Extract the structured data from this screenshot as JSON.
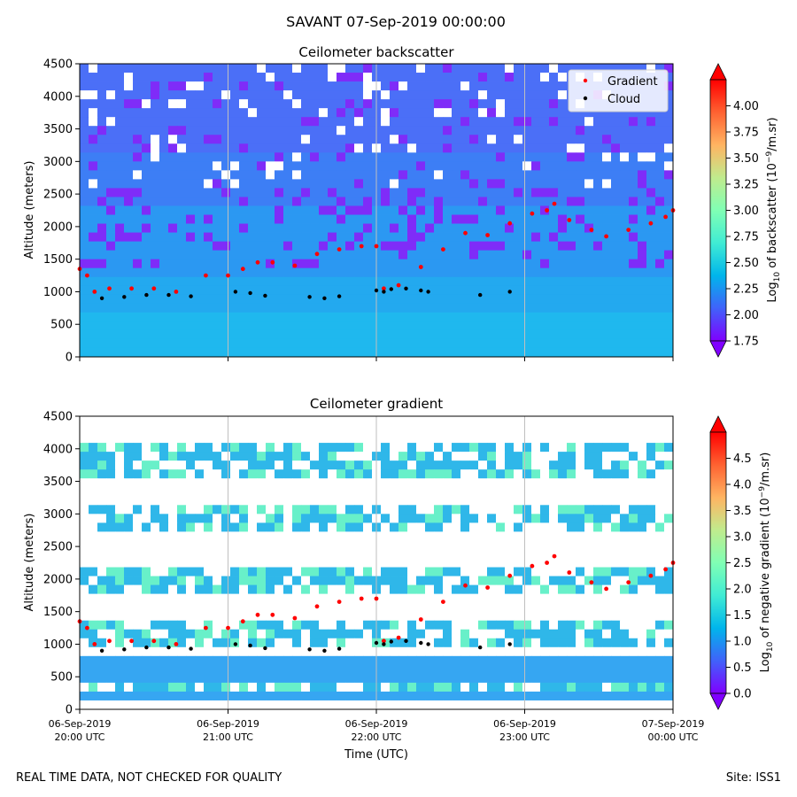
{
  "figure": {
    "suptitle": "SAVANT 07-Sep-2019 00:00:00",
    "footer_left": "REAL TIME DATA, NOT CHECKED FOR QUALITY",
    "footer_right": "Site: ISS1",
    "xlabel": "Time (UTC)",
    "x_tick_dates": [
      "06-Sep-2019",
      "06-Sep-2019",
      "06-Sep-2019",
      "06-Sep-2019",
      "07-Sep-2019"
    ],
    "x_tick_times": [
      "20:00 UTC",
      "21:00 UTC",
      "22:00 UTC",
      "23:00 UTC",
      "00:00 UTC"
    ],
    "legend": {
      "gradient_label": "Gradient",
      "cloud_label": "Cloud",
      "gradient_color": "#ff0000",
      "cloud_color": "#000000",
      "placement": "top-right"
    }
  },
  "colors": {
    "colormap": [
      "#8000ff",
      "#4062fa",
      "#00b5eb",
      "#40ecd4",
      "#80ffb4",
      "#c0eb8d",
      "#ffb462",
      "#ff6231",
      "#ff0000"
    ]
  },
  "chart_data": [
    {
      "type": "heatmap",
      "title": "Ceilometer backscatter",
      "ylabel": "Altitude (meters)",
      "xlim_hours_utc": [
        20,
        24
      ],
      "ylim": [
        0,
        4500
      ],
      "y_ticks": [
        0,
        500,
        1000,
        1500,
        2000,
        2500,
        3000,
        3500,
        4000,
        4500
      ],
      "x_ticks_hours": [
        20,
        21,
        22,
        23,
        24
      ],
      "colorbar": {
        "label_prefix": "Log",
        "label_sub": "10",
        "label_mid": " of backscatter (10",
        "label_sup": "−9",
        "label_suffix": "/m.sr)",
        "range": [
          1.75,
          4.25
        ],
        "ticks": [
          "1.75",
          "2.00",
          "2.25",
          "2.50",
          "2.75",
          "3.00",
          "3.25",
          "3.50",
          "3.75",
          "4.00"
        ]
      },
      "gradient_series": {
        "name": "Gradient",
        "x_hours": [
          20.0,
          20.05,
          20.1,
          20.2,
          20.35,
          20.5,
          20.65,
          20.85,
          21.0,
          21.1,
          21.2,
          21.3,
          21.45,
          21.6,
          21.75,
          21.9,
          22.0,
          22.05,
          22.15,
          22.3,
          22.45,
          22.6,
          22.75,
          22.9,
          23.05,
          23.15,
          23.2,
          23.3,
          23.45,
          23.55,
          23.7,
          23.85,
          23.95,
          24.0
        ],
        "altitude_m": [
          1350,
          1250,
          1000,
          1050,
          1050,
          1050,
          1000,
          1250,
          1250,
          1350,
          1450,
          1450,
          1400,
          1580,
          1650,
          1700,
          1700,
          1050,
          1100,
          1380,
          1650,
          1900,
          1870,
          2050,
          2200,
          2250,
          2350,
          2100,
          1950,
          1850,
          1950,
          2050,
          2150,
          2250
        ]
      },
      "cloud_series": {
        "name": "Cloud",
        "x_hours": [
          20.15,
          20.3,
          20.45,
          20.6,
          20.75,
          21.05,
          21.15,
          21.25,
          21.55,
          21.65,
          21.75,
          22.0,
          22.05,
          22.1,
          22.2,
          22.3,
          22.35,
          22.7,
          22.9
        ],
        "altitude_m": [
          900,
          920,
          950,
          950,
          930,
          1000,
          980,
          940,
          920,
          900,
          930,
          1020,
          1000,
          1040,
          1050,
          1020,
          1000,
          950,
          1000
        ]
      }
    },
    {
      "type": "heatmap",
      "title": "Ceilometer gradient",
      "ylabel": "Altitude (meters)",
      "xlim_hours_utc": [
        20,
        24
      ],
      "ylim": [
        0,
        4500
      ],
      "y_ticks": [
        0,
        500,
        1000,
        1500,
        2000,
        2500,
        3000,
        3500,
        4000,
        4500
      ],
      "x_ticks_hours": [
        20,
        21,
        22,
        23,
        24
      ],
      "colorbar": {
        "label_prefix": "Log",
        "label_sub": "10",
        "label_mid": " of negative gradient (10",
        "label_sup": "−9",
        "label_suffix": "/m.sr)",
        "range": [
          0,
          5
        ],
        "ticks": [
          "0.0",
          "0.5",
          "1.0",
          "1.5",
          "2.0",
          "2.5",
          "3.0",
          "3.5",
          "4.0",
          "4.5"
        ]
      },
      "gradient_series": {
        "name": "Gradient",
        "x_hours": [
          20.0,
          20.05,
          20.1,
          20.2,
          20.35,
          20.5,
          20.65,
          20.85,
          21.0,
          21.1,
          21.2,
          21.3,
          21.45,
          21.6,
          21.75,
          21.9,
          22.0,
          22.05,
          22.15,
          22.3,
          22.45,
          22.6,
          22.75,
          22.9,
          23.05,
          23.15,
          23.2,
          23.3,
          23.45,
          23.55,
          23.7,
          23.85,
          23.95,
          24.0
        ],
        "altitude_m": [
          1350,
          1250,
          1000,
          1050,
          1050,
          1050,
          1000,
          1250,
          1250,
          1350,
          1450,
          1450,
          1400,
          1580,
          1650,
          1700,
          1700,
          1050,
          1100,
          1380,
          1650,
          1900,
          1870,
          2050,
          2200,
          2250,
          2350,
          2100,
          1950,
          1850,
          1950,
          2050,
          2150,
          2250
        ]
      },
      "cloud_series": {
        "name": "Cloud",
        "x_hours": [
          20.15,
          20.3,
          20.45,
          20.6,
          20.75,
          21.05,
          21.15,
          21.25,
          21.55,
          21.65,
          21.75,
          22.0,
          22.05,
          22.1,
          22.2,
          22.3,
          22.35,
          22.7,
          22.9
        ],
        "altitude_m": [
          900,
          920,
          950,
          950,
          930,
          1000,
          980,
          940,
          920,
          900,
          930,
          1020,
          1000,
          1040,
          1050,
          1020,
          1000,
          950,
          1000
        ]
      }
    }
  ]
}
